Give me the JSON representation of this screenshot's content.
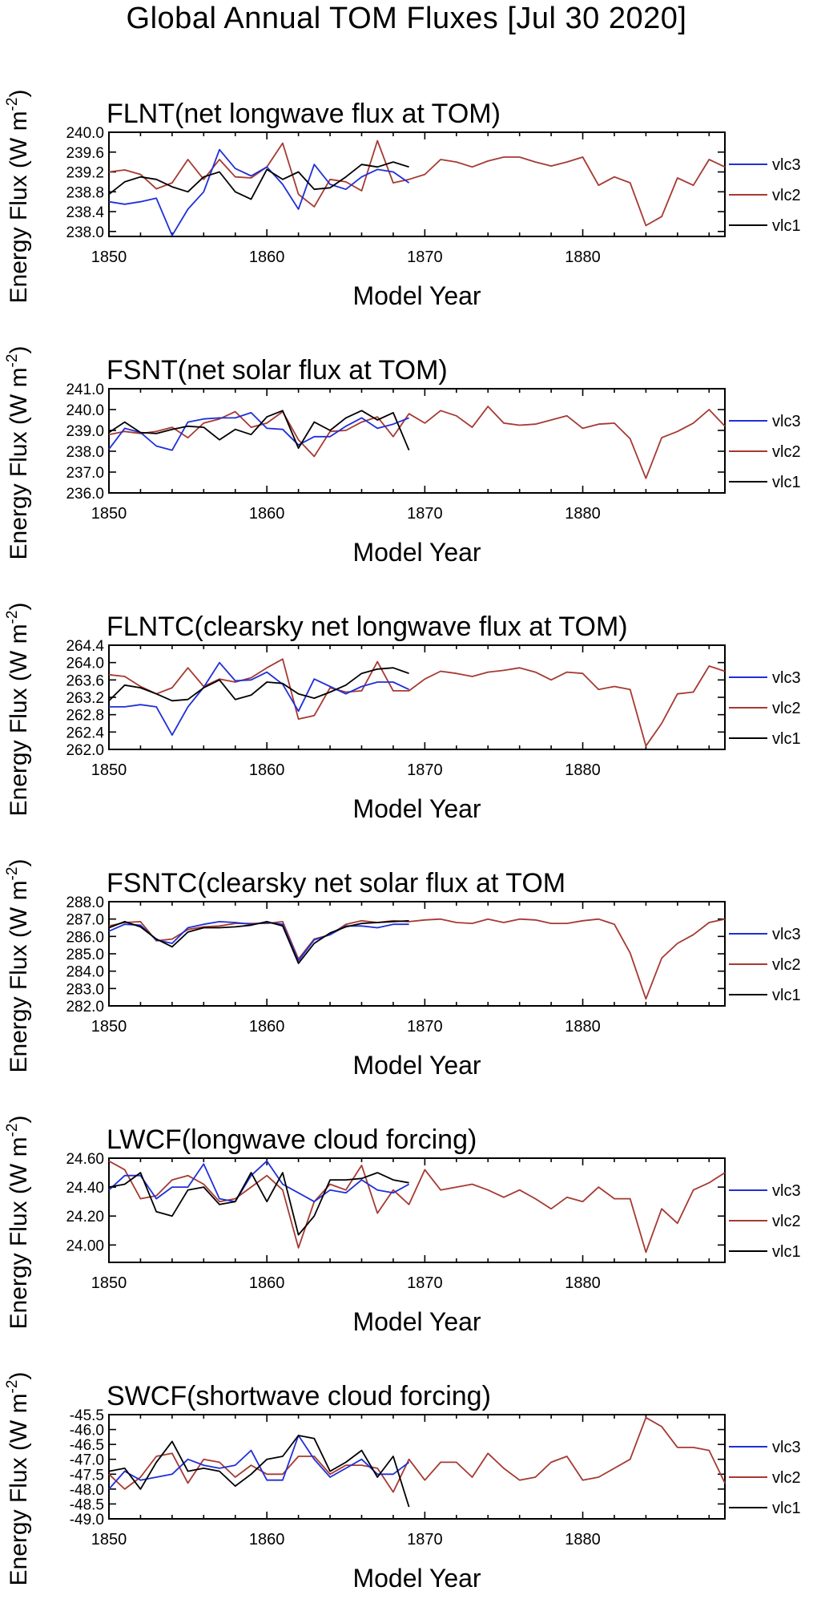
{
  "figure_title": "Global Annual TOM Fluxes [Jul 30 2020]",
  "colors": {
    "vlc3": "#1f2fd8",
    "vlc2": "#a53a32",
    "vlc1": "#000000"
  },
  "chart_data": [
    {
      "type": "line",
      "title": "FLNT(net longwave flux at TOM)",
      "xlabel": "Model Year",
      "ylabel_main": "Energy Flux (W m",
      "ylabel_sup": "-2",
      "ylabel_end": ")",
      "xlim": [
        1850,
        1889
      ],
      "ylim": [
        237.9,
        240.0
      ],
      "xticks": [
        "1850",
        "1860",
        "1870",
        "1880"
      ],
      "yticks": [
        "240.0",
        "239.6",
        "239.2",
        "238.8",
        "238.4",
        "238.0"
      ],
      "legend": [
        "vlc3",
        "vlc2",
        "vlc1"
      ],
      "series": [
        {
          "name": "vlc3",
          "x0": 1850,
          "values": [
            238.6,
            238.55,
            238.6,
            238.67,
            237.92,
            238.45,
            238.8,
            239.65,
            239.27,
            239.12,
            239.3,
            238.95,
            238.45,
            239.35,
            238.95,
            238.85,
            239.1,
            239.25,
            239.2,
            238.98
          ]
        },
        {
          "name": "vlc2",
          "x0": 1850,
          "values": [
            239.2,
            239.24,
            239.15,
            238.86,
            238.98,
            239.45,
            239.05,
            239.45,
            239.1,
            239.08,
            239.3,
            239.78,
            238.75,
            238.5,
            239.05,
            239.0,
            238.82,
            239.83,
            238.98,
            239.05,
            239.15,
            239.45,
            239.4,
            239.3,
            239.42,
            239.5,
            239.5,
            239.4,
            239.32,
            239.4,
            239.5,
            238.93,
            239.1,
            238.98,
            238.12,
            238.3,
            239.08,
            238.93,
            239.45,
            239.3
          ]
        },
        {
          "name": "vlc1",
          "x0": 1850,
          "values": [
            238.75,
            239.0,
            239.1,
            239.05,
            238.9,
            238.8,
            239.1,
            239.2,
            238.8,
            238.65,
            239.25,
            239.05,
            239.2,
            238.85,
            238.88,
            239.1,
            239.35,
            239.3,
            239.4,
            239.3
          ]
        }
      ]
    },
    {
      "type": "line",
      "title": "FSNT(net solar flux at TOM)",
      "xlabel": "Model Year",
      "ylabel_main": "Energy Flux (W m",
      "ylabel_sup": "-2",
      "ylabel_end": ")",
      "xlim": [
        1850,
        1889
      ],
      "ylim": [
        236.0,
        241.0
      ],
      "xticks": [
        "1850",
        "1860",
        "1870",
        "1880"
      ],
      "yticks": [
        "241.0",
        "240.0",
        "239.0",
        "238.0",
        "237.0",
        "236.0"
      ],
      "legend": [
        "vlc3",
        "vlc2",
        "vlc1"
      ],
      "series": [
        {
          "name": "vlc3",
          "x0": 1850,
          "values": [
            238.1,
            239.1,
            238.9,
            238.25,
            238.05,
            239.4,
            239.55,
            239.6,
            239.6,
            239.85,
            239.1,
            239.05,
            238.3,
            238.7,
            238.7,
            239.2,
            239.6,
            239.1,
            239.3,
            239.6
          ]
        },
        {
          "name": "vlc2",
          "x0": 1850,
          "values": [
            238.8,
            238.95,
            238.85,
            238.95,
            239.15,
            238.65,
            239.35,
            239.55,
            239.9,
            239.15,
            239.35,
            239.9,
            238.55,
            237.75,
            238.95,
            239.0,
            239.4,
            239.65,
            238.7,
            239.8,
            239.35,
            239.95,
            239.7,
            239.15,
            240.15,
            239.35,
            239.25,
            239.3,
            239.5,
            239.7,
            239.1,
            239.3,
            239.35,
            238.6,
            236.7,
            238.65,
            238.95,
            239.35,
            240.0,
            239.2
          ]
        },
        {
          "name": "vlc1",
          "x0": 1850,
          "values": [
            238.9,
            239.4,
            238.9,
            238.85,
            239.05,
            239.2,
            239.15,
            238.55,
            239.05,
            238.8,
            239.65,
            239.95,
            238.15,
            239.4,
            239.0,
            239.6,
            239.95,
            239.5,
            239.85,
            238.05
          ]
        }
      ]
    },
    {
      "type": "line",
      "title": "FLNTC(clearsky net longwave flux at TOM)",
      "xlabel": "Model Year",
      "ylabel_main": "Energy Flux (W m",
      "ylabel_sup": "-2",
      "ylabel_end": ")",
      "xlim": [
        1850,
        1889
      ],
      "ylim": [
        262.0,
        264.4
      ],
      "xticks": [
        "1850",
        "1860",
        "1870",
        "1880"
      ],
      "yticks": [
        "264.4",
        "264.0",
        "263.6",
        "263.2",
        "262.8",
        "262.4",
        "262.0"
      ],
      "legend": [
        "vlc3",
        "vlc2",
        "vlc1"
      ],
      "series": [
        {
          "name": "vlc3",
          "x0": 1850,
          "values": [
            262.98,
            262.98,
            263.03,
            262.98,
            262.33,
            262.98,
            263.43,
            264.0,
            263.58,
            263.6,
            263.78,
            263.5,
            262.88,
            263.62,
            263.45,
            263.28,
            263.45,
            263.55,
            263.55,
            263.38
          ]
        },
        {
          "name": "vlc2",
          "x0": 1850,
          "values": [
            263.72,
            263.68,
            263.45,
            263.28,
            263.42,
            263.88,
            263.45,
            263.62,
            263.55,
            263.65,
            263.88,
            264.08,
            262.7,
            262.78,
            263.42,
            263.32,
            263.35,
            264.02,
            263.35,
            263.35,
            263.62,
            263.8,
            263.75,
            263.68,
            263.78,
            263.82,
            263.88,
            263.78,
            263.6,
            263.78,
            263.75,
            263.38,
            263.45,
            263.38,
            262.08,
            262.6,
            263.28,
            263.32,
            263.92,
            263.8
          ]
        },
        {
          "name": "vlc1",
          "x0": 1850,
          "values": [
            263.12,
            263.48,
            263.42,
            263.28,
            263.12,
            263.15,
            263.42,
            263.6,
            263.15,
            263.25,
            263.55,
            263.52,
            263.28,
            263.18,
            263.32,
            263.48,
            263.75,
            263.85,
            263.88,
            263.75
          ]
        }
      ]
    },
    {
      "type": "line",
      "title": "FSNTC(clearsky net solar flux at TOM",
      "xlabel": "Model Year",
      "ylabel_main": "Energy Flux (W m",
      "ylabel_sup": "-2",
      "ylabel_end": ")",
      "xlim": [
        1850,
        1889
      ],
      "ylim": [
        282.0,
        288.0
      ],
      "xticks": [
        "1850",
        "1860",
        "1870",
        "1880"
      ],
      "yticks": [
        "288.0",
        "287.0",
        "286.0",
        "285.0",
        "284.0",
        "283.0",
        "282.0"
      ],
      "legend": [
        "vlc3",
        "vlc2",
        "vlc1"
      ],
      "series": [
        {
          "name": "vlc3",
          "x0": 1850,
          "values": [
            286.3,
            286.7,
            286.65,
            285.8,
            285.6,
            286.5,
            286.7,
            286.85,
            286.8,
            286.7,
            286.8,
            286.7,
            284.6,
            285.8,
            286.1,
            286.6,
            286.6,
            286.5,
            286.7,
            286.7
          ]
        },
        {
          "name": "vlc2",
          "x0": 1850,
          "values": [
            286.6,
            286.8,
            286.85,
            285.75,
            285.85,
            286.4,
            286.55,
            286.6,
            286.75,
            286.75,
            286.75,
            286.85,
            284.7,
            285.85,
            286.1,
            286.7,
            286.9,
            286.8,
            286.9,
            286.85,
            286.95,
            287.0,
            286.8,
            286.75,
            287.0,
            286.8,
            287.0,
            286.95,
            286.75,
            286.75,
            286.9,
            287.0,
            286.7,
            285.05,
            282.4,
            284.75,
            285.6,
            286.1,
            286.8,
            287.0
          ]
        },
        {
          "name": "vlc1",
          "x0": 1850,
          "values": [
            286.5,
            286.85,
            286.55,
            285.85,
            285.4,
            286.25,
            286.5,
            286.5,
            286.55,
            286.65,
            286.85,
            286.6,
            284.45,
            285.6,
            286.2,
            286.55,
            286.75,
            286.8,
            286.85,
            286.9
          ]
        }
      ]
    },
    {
      "type": "line",
      "title": "LWCF(longwave cloud forcing)",
      "xlabel": "Model Year",
      "ylabel_main": "Energy Flux (W m",
      "ylabel_sup": "-2",
      "ylabel_end": ")",
      "xlim": [
        1850,
        1889
      ],
      "ylim": [
        23.88,
        24.6
      ],
      "xticks": [
        "1850",
        "1860",
        "1870",
        "1880"
      ],
      "yticks": [
        "24.60",
        "24.40",
        "24.20",
        "24.00"
      ],
      "legend": [
        "vlc3",
        "vlc2",
        "vlc1"
      ],
      "series": [
        {
          "name": "vlc3",
          "x0": 1850,
          "values": [
            24.38,
            24.48,
            24.48,
            24.32,
            24.4,
            24.4,
            24.56,
            24.32,
            24.3,
            24.48,
            24.58,
            24.42,
            24.36,
            24.3,
            24.38,
            24.36,
            24.45,
            24.38,
            24.36,
            24.42
          ]
        },
        {
          "name": "vlc2",
          "x0": 1850,
          "values": [
            24.58,
            24.52,
            24.32,
            24.34,
            24.45,
            24.48,
            24.42,
            24.3,
            24.32,
            24.4,
            24.48,
            24.38,
            23.98,
            24.3,
            24.42,
            24.38,
            24.55,
            24.22,
            24.38,
            24.28,
            24.52,
            24.38,
            24.4,
            24.42,
            24.38,
            24.33,
            24.38,
            24.32,
            24.25,
            24.33,
            24.3,
            24.4,
            24.32,
            24.32,
            23.95,
            24.25,
            24.15,
            24.38,
            24.43,
            24.5
          ]
        },
        {
          "name": "vlc1",
          "x0": 1850,
          "values": [
            24.4,
            24.42,
            24.5,
            24.23,
            24.2,
            24.38,
            24.4,
            24.28,
            24.3,
            24.5,
            24.3,
            24.5,
            24.07,
            24.2,
            24.45,
            24.45,
            24.46,
            24.5,
            24.45,
            24.43
          ]
        }
      ]
    },
    {
      "type": "line",
      "title": "SWCF(shortwave cloud forcing)",
      "xlabel": "Model Year",
      "ylabel_main": "Energy Flux (W m",
      "ylabel_sup": "-2",
      "ylabel_end": ")",
      "xlim": [
        1850,
        1889
      ],
      "ylim": [
        -49.0,
        -45.5
      ],
      "xticks": [
        "1850",
        "1860",
        "1870",
        "1880"
      ],
      "yticks": [
        "-45.5",
        "-46.0",
        "-46.5",
        "-47.0",
        "-47.5",
        "-48.0",
        "-48.5",
        "-49.0"
      ],
      "legend": [
        "vlc3",
        "vlc2",
        "vlc1"
      ],
      "series": [
        {
          "name": "vlc3",
          "x0": 1850,
          "values": [
            -48.0,
            -47.4,
            -47.7,
            -47.6,
            -47.5,
            -47.0,
            -47.2,
            -47.3,
            -47.2,
            -46.7,
            -47.7,
            -47.7,
            -46.2,
            -47.0,
            -47.6,
            -47.3,
            -47.0,
            -47.5,
            -47.5,
            -47.1
          ]
        },
        {
          "name": "vlc2",
          "x0": 1850,
          "values": [
            -47.5,
            -48.0,
            -47.6,
            -46.9,
            -46.8,
            -47.8,
            -47.0,
            -47.1,
            -47.6,
            -47.2,
            -47.5,
            -47.5,
            -46.9,
            -46.9,
            -47.5,
            -47.2,
            -47.2,
            -47.3,
            -48.1,
            -47.0,
            -47.7,
            -47.1,
            -47.1,
            -47.6,
            -46.8,
            -47.3,
            -47.7,
            -47.6,
            -47.1,
            -46.9,
            -47.7,
            -47.6,
            -47.3,
            -47.0,
            -45.6,
            -45.9,
            -46.6,
            -46.6,
            -46.7,
            -47.8
          ]
        },
        {
          "name": "vlc1",
          "x0": 1850,
          "values": [
            -47.4,
            -47.3,
            -48.0,
            -47.1,
            -46.4,
            -47.4,
            -47.3,
            -47.4,
            -47.9,
            -47.5,
            -47.0,
            -46.9,
            -46.2,
            -46.3,
            -47.4,
            -47.1,
            -46.7,
            -47.6,
            -46.9,
            -48.6
          ]
        }
      ]
    }
  ]
}
